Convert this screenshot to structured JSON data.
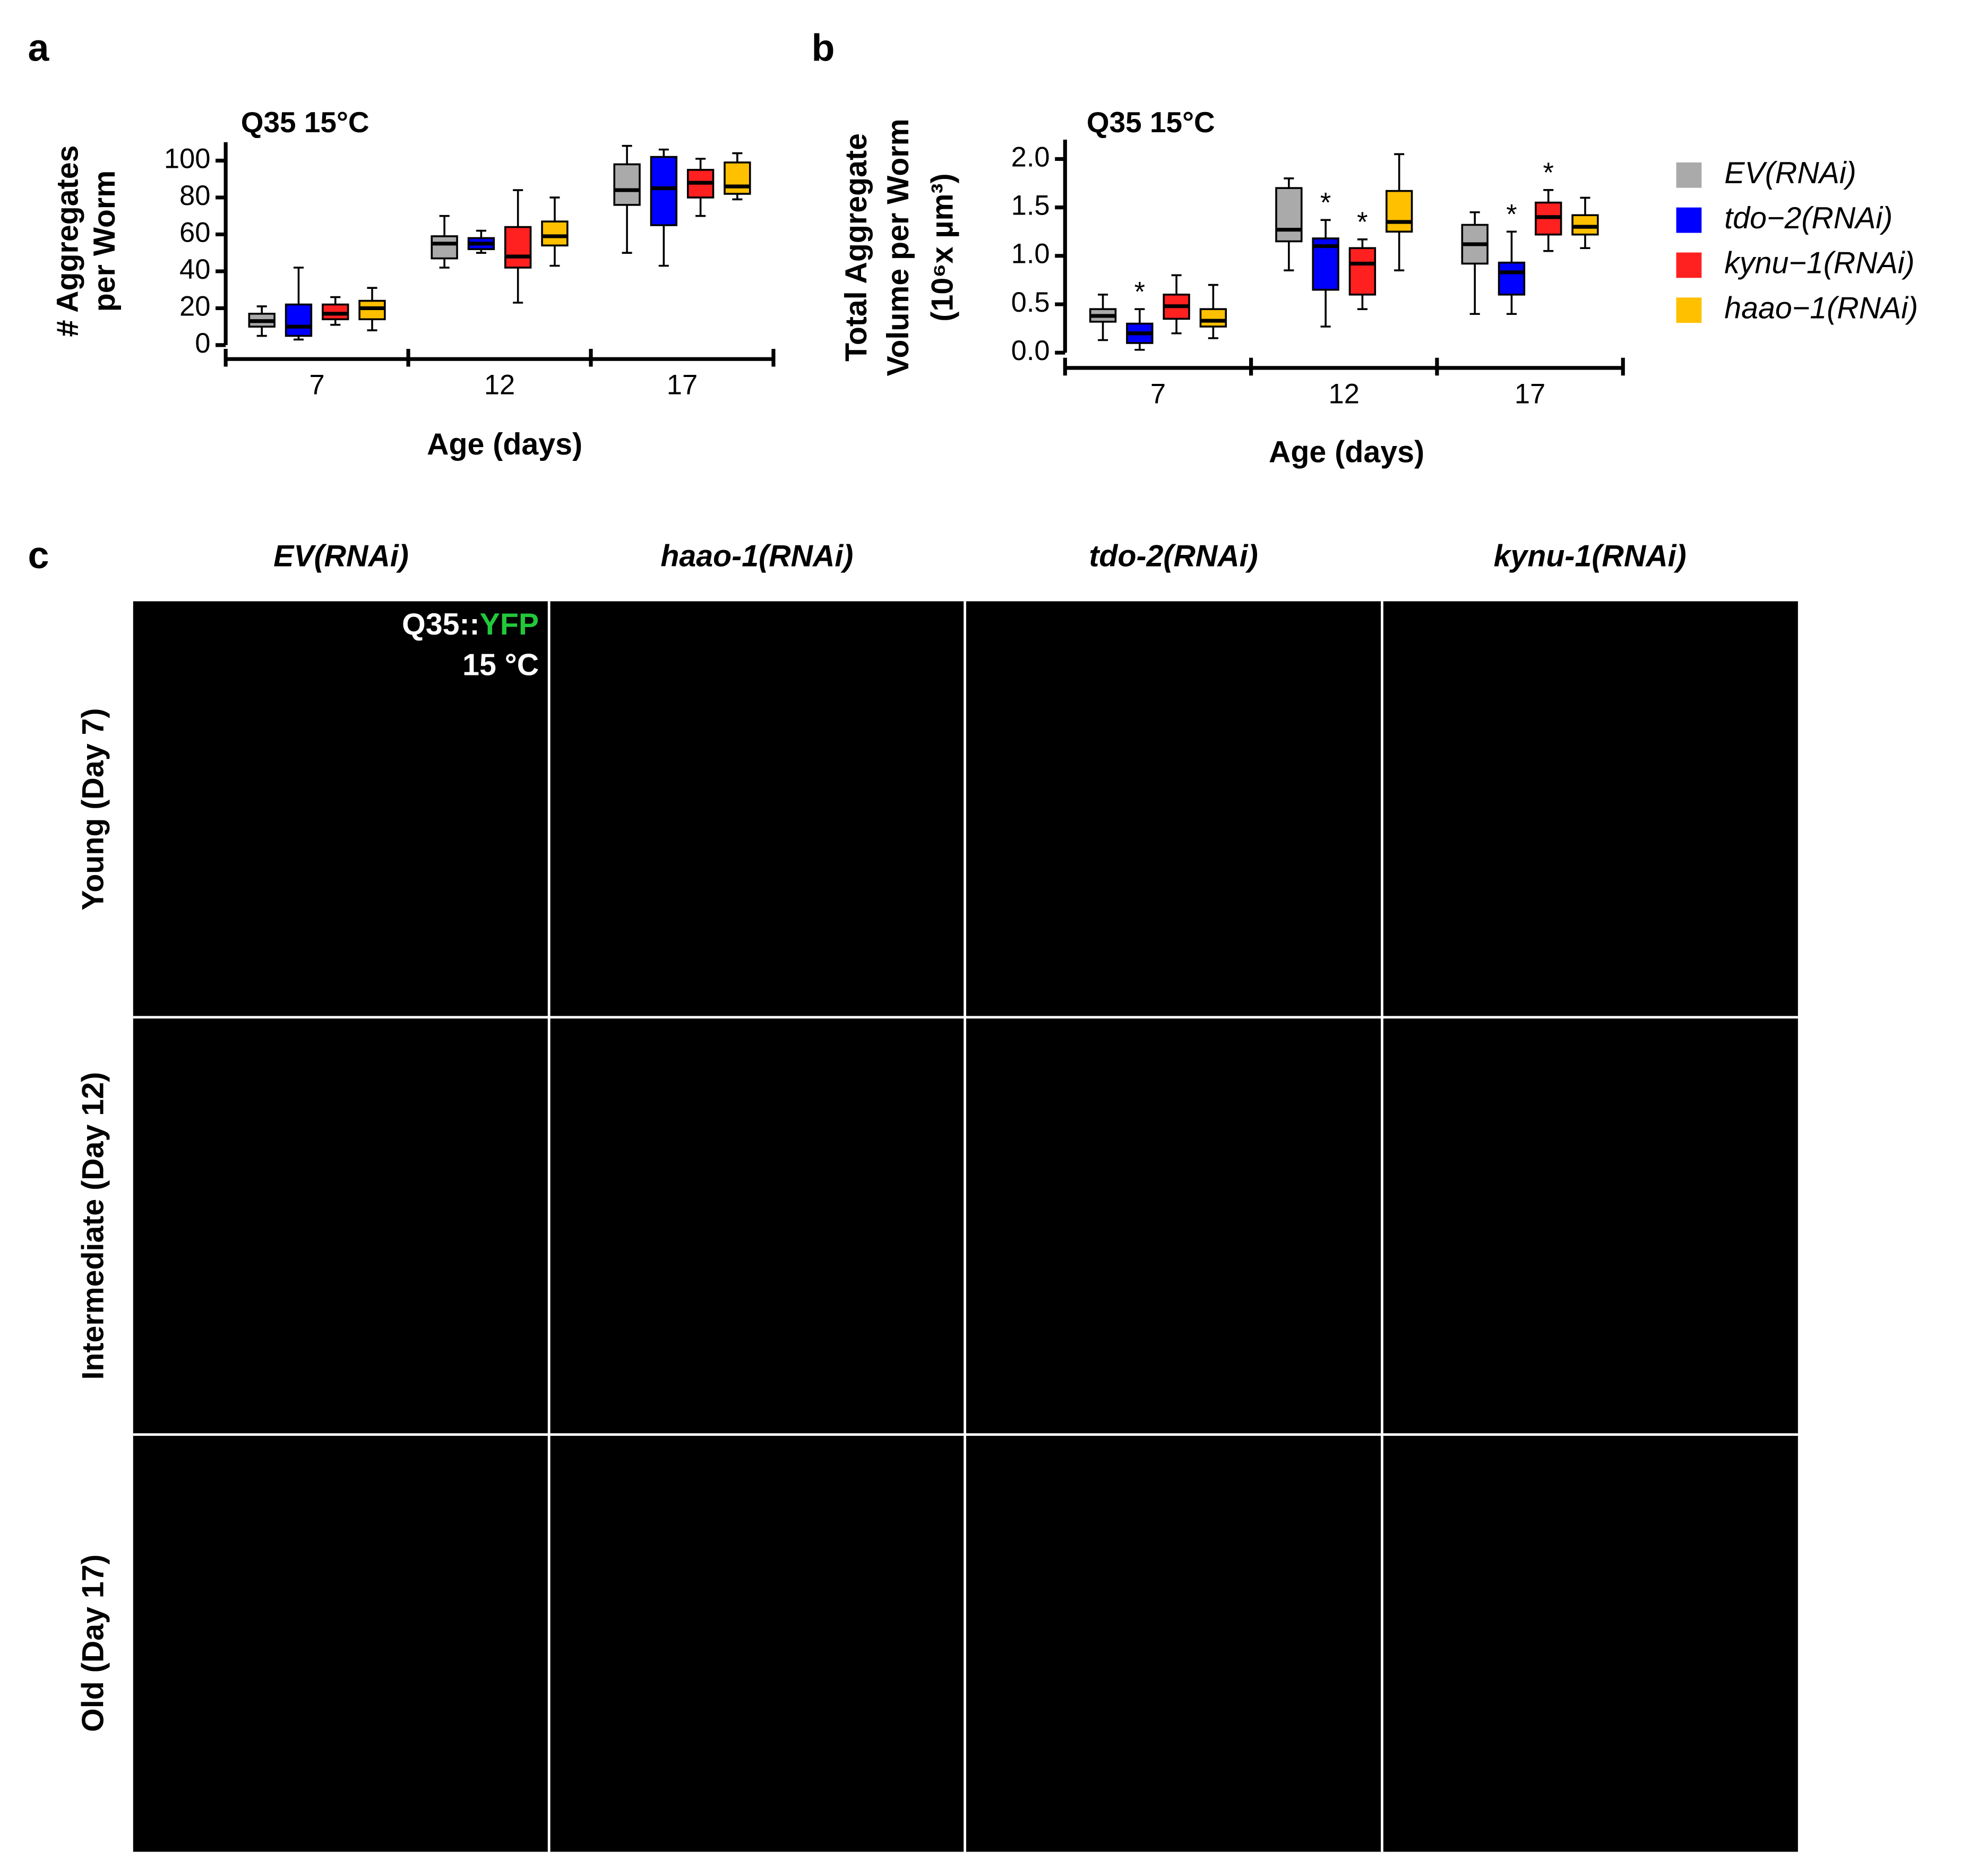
{
  "panel_labels": [
    "a",
    "b",
    "c"
  ],
  "chart_data": [
    {
      "type": "box",
      "title": "Q35 15°C",
      "xlabel": "Age (days)",
      "ylabel": [
        "# Aggregates",
        "per Worm"
      ],
      "categories": [
        "7",
        "12",
        "17"
      ],
      "ylim": [
        0,
        110
      ],
      "yticks": [
        0,
        20,
        40,
        60,
        80,
        100
      ],
      "series": [
        {
          "color": "#aaaaaa",
          "values": [
            {
              "min": 5,
              "q1": 10,
              "median": 13,
              "q3": 17,
              "max": 21
            },
            {
              "min": 42,
              "q1": 47,
              "median": 55,
              "q3": 59,
              "max": 70
            },
            {
              "min": 50,
              "q1": 76,
              "median": 84,
              "q3": 98,
              "max": 108
            }
          ]
        },
        {
          "color": "#0000ff",
          "values": [
            {
              "min": 3,
              "q1": 5,
              "median": 10,
              "q3": 22,
              "max": 42
            },
            {
              "min": 50,
              "q1": 52,
              "median": 55,
              "q3": 58,
              "max": 62
            },
            {
              "min": 43,
              "q1": 65,
              "median": 85,
              "q3": 102,
              "max": 106
            }
          ]
        },
        {
          "color": "#ff2020",
          "values": [
            {
              "min": 11,
              "q1": 14,
              "median": 17,
              "q3": 22,
              "max": 26
            },
            {
              "min": 23,
              "q1": 42,
              "median": 48,
              "q3": 64,
              "max": 84
            },
            {
              "min": 70,
              "q1": 80,
              "median": 88,
              "q3": 95,
              "max": 101
            }
          ]
        },
        {
          "color": "#ffc000",
          "values": [
            {
              "min": 8,
              "q1": 14,
              "median": 20,
              "q3": 24,
              "max": 31
            },
            {
              "min": 43,
              "q1": 54,
              "median": 59,
              "q3": 67,
              "max": 80
            },
            {
              "min": 79,
              "q1": 82,
              "median": 86,
              "q3": 99,
              "max": 104
            }
          ]
        }
      ]
    },
    {
      "type": "box",
      "title": "Q35 15°C",
      "xlabel": "Age (days)",
      "ylabel": [
        "Total Aggregate",
        "Volume per Worm",
        "(10⁶x µm³)"
      ],
      "categories": [
        "7",
        "12",
        "17"
      ],
      "ylim": [
        0,
        2.2
      ],
      "yticks": [
        {
          "value": 0,
          "label": "0.0"
        },
        0.5,
        {
          "value": 1,
          "label": "1.0"
        },
        1.5,
        {
          "value": 2,
          "label": "2.0"
        }
      ],
      "legend": "right",
      "series": [
        {
          "name": "EV(RNAi)",
          "color": "#aaaaaa",
          "values": [
            {
              "min": 0.13,
              "q1": 0.32,
              "median": 0.38,
              "q3": 0.45,
              "max": 0.6
            },
            {
              "min": 0.85,
              "q1": 1.15,
              "median": 1.27,
              "q3": 1.7,
              "max": 1.8
            },
            {
              "min": 0.4,
              "q1": 0.92,
              "median": 1.12,
              "q3": 1.32,
              "max": 1.45
            }
          ]
        },
        {
          "name": "tdo−2(RNAi)",
          "color": "#0000ff",
          "annotations": [
            "*",
            "*",
            "*"
          ],
          "values": [
            {
              "min": 0.03,
              "q1": 0.1,
              "median": 0.2,
              "q3": 0.3,
              "max": 0.45
            },
            {
              "min": 0.27,
              "q1": 0.65,
              "median": 1.1,
              "q3": 1.18,
              "max": 1.37
            },
            {
              "min": 0.4,
              "q1": 0.6,
              "median": 0.83,
              "q3": 0.93,
              "max": 1.25
            }
          ]
        },
        {
          "name": "kynu−1(RNAi)",
          "color": "#ff2020",
          "annotations": [
            null,
            "*",
            "*"
          ],
          "values": [
            {
              "min": 0.2,
              "q1": 0.35,
              "median": 0.48,
              "q3": 0.6,
              "max": 0.8
            },
            {
              "min": 0.45,
              "q1": 0.6,
              "median": 0.92,
              "q3": 1.08,
              "max": 1.17
            },
            {
              "min": 1.05,
              "q1": 1.22,
              "median": 1.4,
              "q3": 1.55,
              "max": 1.68
            }
          ]
        },
        {
          "name": "haao−1(RNAi)",
          "color": "#ffc000",
          "values": [
            {
              "min": 0.15,
              "q1": 0.27,
              "median": 0.33,
              "q3": 0.45,
              "max": 0.7
            },
            {
              "min": 0.85,
              "q1": 1.25,
              "median": 1.35,
              "q3": 1.67,
              "max": 2.05
            },
            {
              "min": 1.08,
              "q1": 1.22,
              "median": 1.3,
              "q3": 1.42,
              "max": 1.6
            }
          ]
        }
      ]
    }
  ],
  "image_grid": {
    "columns": [
      "EV(RNAi)",
      "haao-1(RNAi)",
      "tdo-2(RNAi)",
      "kynu-1(RNAi)"
    ],
    "rows": [
      "Young (Day 7)",
      "Intermediate (Day 12)",
      "Old (Day 17)"
    ],
    "overlay": {
      "label": "Q35::",
      "channel": "YFP",
      "temperature": "15 °C"
    }
  }
}
